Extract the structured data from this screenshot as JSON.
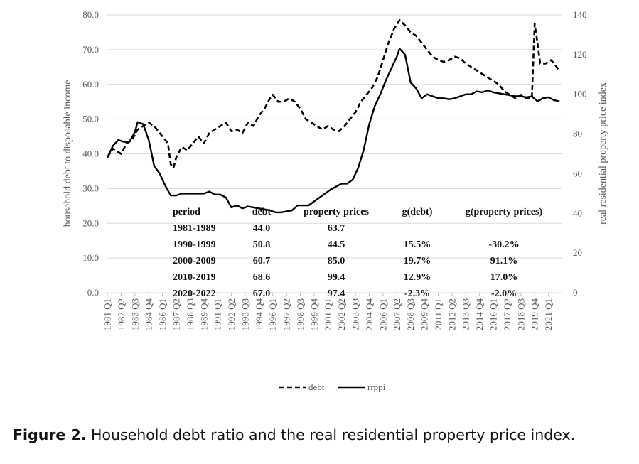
{
  "chart_data": {
    "type": "line",
    "y_left_label": "household debt to disposable income",
    "y_right_label": "real residential property price index",
    "y_left_ticks": [
      "0.0",
      "10.0",
      "20.0",
      "30.0",
      "40.0",
      "50.0",
      "60.0",
      "70.0",
      "80.0"
    ],
    "y_right_ticks": [
      "0",
      "20",
      "40",
      "60",
      "80",
      "100",
      "120",
      "140"
    ],
    "ylim_left": [
      0,
      80
    ],
    "ylim_right": [
      0,
      140
    ],
    "x_tick_labels": [
      "1981 Q1",
      "1982 Q2",
      "1983 Q3",
      "1984 Q4",
      "1986 Q1",
      "1987 Q2",
      "1988 Q3",
      "1989 Q4",
      "1991 Q1",
      "1992 Q2",
      "1993 Q3",
      "1994 Q4",
      "1996 Q1",
      "1997 Q2",
      "1998 Q3",
      "1999 Q4",
      "2001 Q1",
      "2002 Q2",
      "2003 Q3",
      "2004 Q4",
      "2006 Q1",
      "2007 Q2",
      "2008 Q3",
      "2009 Q4",
      "2011 Q1",
      "2012 Q2",
      "2013 Q3",
      "2014 Q4",
      "2016 Q1",
      "2017 Q2",
      "2018 Q3",
      "2019 Q4",
      "2021 Q1"
    ],
    "grid": true,
    "legend_position": "bottom",
    "series": [
      {
        "name": "debt",
        "axis": "left",
        "style": "dashed",
        "points": [
          [
            "1981 Q1",
            39
          ],
          [
            "1981 Q3",
            41.5
          ],
          [
            "1982 Q2",
            40
          ],
          [
            "1982 Q4",
            43
          ],
          [
            "1983 Q2",
            44
          ],
          [
            "1983 Q4",
            47
          ],
          [
            "1984 Q2",
            48
          ],
          [
            "1984 Q4",
            49
          ],
          [
            "1985 Q2",
            48
          ],
          [
            "1985 Q4",
            46
          ],
          [
            "1986 Q2",
            44
          ],
          [
            "1986 Q3",
            43
          ],
          [
            "1986 Q4",
            37
          ],
          [
            "1987 Q1",
            36
          ],
          [
            "1987 Q2",
            39
          ],
          [
            "1987 Q4",
            42
          ],
          [
            "1988 Q2",
            41
          ],
          [
            "1988 Q4",
            43
          ],
          [
            "1989 Q2",
            45
          ],
          [
            "1989 Q4",
            43
          ],
          [
            "1990 Q2",
            46
          ],
          [
            "1990 Q4",
            47
          ],
          [
            "1991 Q2",
            48
          ],
          [
            "1991 Q4",
            49
          ],
          [
            "1992 Q2",
            46.5
          ],
          [
            "1992 Q4",
            47
          ],
          [
            "1993 Q2",
            46
          ],
          [
            "1993 Q4",
            49
          ],
          [
            "1994 Q2",
            48
          ],
          [
            "1994 Q4",
            51
          ],
          [
            "1995 Q2",
            53
          ],
          [
            "1995 Q4",
            56
          ],
          [
            "1996 Q1",
            57
          ],
          [
            "1996 Q3",
            55
          ],
          [
            "1997 Q1",
            55
          ],
          [
            "1997 Q3",
            56
          ],
          [
            "1998 Q1",
            55
          ],
          [
            "1998 Q3",
            53
          ],
          [
            "1999 Q1",
            50
          ],
          [
            "1999 Q3",
            49
          ],
          [
            "2000 Q1",
            48
          ],
          [
            "2000 Q3",
            47
          ],
          [
            "2001 Q1",
            48
          ],
          [
            "2001 Q3",
            47
          ],
          [
            "2002 Q1",
            46.5
          ],
          [
            "2002 Q3",
            48
          ],
          [
            "2003 Q1",
            50
          ],
          [
            "2003 Q3",
            52
          ],
          [
            "2004 Q1",
            55
          ],
          [
            "2004 Q3",
            57
          ],
          [
            "2005 Q1",
            59
          ],
          [
            "2005 Q3",
            62
          ],
          [
            "2006 Q1",
            67
          ],
          [
            "2006 Q3",
            72
          ],
          [
            "2007 Q1",
            76
          ],
          [
            "2007 Q3",
            78.5
          ],
          [
            "2008 Q1",
            77
          ],
          [
            "2008 Q3",
            75
          ],
          [
            "2009 Q1",
            74
          ],
          [
            "2009 Q3",
            72
          ],
          [
            "2010 Q1",
            70
          ],
          [
            "2010 Q3",
            68
          ],
          [
            "2011 Q1",
            67
          ],
          [
            "2011 Q3",
            66.5
          ],
          [
            "2012 Q1",
            67
          ],
          [
            "2012 Q3",
            68
          ],
          [
            "2013 Q1",
            67.5
          ],
          [
            "2013 Q3",
            66
          ],
          [
            "2014 Q1",
            65
          ],
          [
            "2014 Q3",
            64
          ],
          [
            "2015 Q1",
            63
          ],
          [
            "2015 Q3",
            62
          ],
          [
            "2016 Q1",
            61
          ],
          [
            "2016 Q3",
            60
          ],
          [
            "2017 Q1",
            58
          ],
          [
            "2017 Q3",
            57
          ],
          [
            "2018 Q1",
            56
          ],
          [
            "2018 Q3",
            57
          ],
          [
            "2019 Q1",
            56
          ],
          [
            "2019 Q3",
            56
          ],
          [
            "2019 Q4",
            77.5
          ],
          [
            "2020 Q1",
            72
          ],
          [
            "2020 Q2",
            66
          ],
          [
            "2020 Q4",
            66
          ],
          [
            "2021 Q2",
            67
          ],
          [
            "2022 Q1",
            64
          ]
        ]
      },
      {
        "name": "rrppi",
        "axis": "right",
        "style": "solid",
        "points": [
          [
            "1981 Q1",
            68
          ],
          [
            "1981 Q3",
            74
          ],
          [
            "1982 Q1",
            77
          ],
          [
            "1982 Q3",
            76
          ],
          [
            "1983 Q1",
            76
          ],
          [
            "1983 Q3",
            81
          ],
          [
            "1983 Q4",
            86
          ],
          [
            "1984 Q2",
            85
          ],
          [
            "1984 Q4",
            77
          ],
          [
            "1985 Q2",
            64
          ],
          [
            "1985 Q4",
            60
          ],
          [
            "1986 Q2",
            54
          ],
          [
            "1986 Q4",
            49
          ],
          [
            "1987 Q2",
            49
          ],
          [
            "1987 Q4",
            50
          ],
          [
            "1988 Q2",
            50
          ],
          [
            "1988 Q4",
            50
          ],
          [
            "1989 Q2",
            50
          ],
          [
            "1989 Q4",
            50
          ],
          [
            "1990 Q2",
            51
          ],
          [
            "1990 Q4",
            49.5
          ],
          [
            "1991 Q2",
            49.5
          ],
          [
            "1991 Q4",
            48
          ],
          [
            "1992 Q2",
            43
          ],
          [
            "1992 Q4",
            44
          ],
          [
            "1993 Q2",
            42.5
          ],
          [
            "1993 Q4",
            43.5
          ],
          [
            "1994 Q2",
            43
          ],
          [
            "1994 Q4",
            42.5
          ],
          [
            "1995 Q2",
            42
          ],
          [
            "1995 Q4",
            41.5
          ],
          [
            "1996 Q2",
            40.5
          ],
          [
            "1996 Q4",
            40.5
          ],
          [
            "1997 Q2",
            41
          ],
          [
            "1997 Q4",
            41.5
          ],
          [
            "1998 Q2",
            44
          ],
          [
            "1998 Q4",
            44
          ],
          [
            "1999 Q2",
            44
          ],
          [
            "1999 Q4",
            46
          ],
          [
            "2000 Q2",
            48
          ],
          [
            "2000 Q4",
            50
          ],
          [
            "2001 Q2",
            52
          ],
          [
            "2001 Q4",
            53.5
          ],
          [
            "2002 Q2",
            55
          ],
          [
            "2002 Q4",
            55
          ],
          [
            "2003 Q2",
            57
          ],
          [
            "2003 Q4",
            63
          ],
          [
            "2004 Q2",
            72
          ],
          [
            "2004 Q4",
            85
          ],
          [
            "2005 Q2",
            94
          ],
          [
            "2005 Q4",
            100
          ],
          [
            "2006 Q2",
            107
          ],
          [
            "2006 Q4",
            113
          ],
          [
            "2007 Q2",
            119
          ],
          [
            "2007 Q3",
            123
          ],
          [
            "2008 Q1",
            120
          ],
          [
            "2008 Q3",
            106
          ],
          [
            "2009 Q1",
            103
          ],
          [
            "2009 Q3",
            98
          ],
          [
            "2010 Q1",
            100
          ],
          [
            "2010 Q3",
            99
          ],
          [
            "2011 Q1",
            98
          ],
          [
            "2011 Q3",
            98
          ],
          [
            "2012 Q1",
            97.5
          ],
          [
            "2012 Q3",
            98
          ],
          [
            "2013 Q1",
            99
          ],
          [
            "2013 Q3",
            100
          ],
          [
            "2014 Q1",
            100
          ],
          [
            "2014 Q3",
            101.5
          ],
          [
            "2015 Q1",
            101
          ],
          [
            "2015 Q3",
            102
          ],
          [
            "2016 Q1",
            101
          ],
          [
            "2016 Q3",
            100.5
          ],
          [
            "2017 Q1",
            100
          ],
          [
            "2017 Q3",
            99.5
          ],
          [
            "2018 Q1",
            99
          ],
          [
            "2018 Q3",
            99
          ],
          [
            "2019 Q1",
            98.5
          ],
          [
            "2019 Q3",
            99
          ],
          [
            "2020 Q1",
            96.5
          ],
          [
            "2020 Q3",
            98
          ],
          [
            "2021 Q1",
            98.5
          ],
          [
            "2021 Q3",
            97
          ],
          [
            "2022 Q1",
            96.5
          ]
        ]
      }
    ],
    "table": {
      "headers": [
        "period",
        "debt",
        "property prices",
        "g(debt)",
        "g(property prices)"
      ],
      "rows": [
        [
          "1981-1989",
          "44.0",
          "63.7",
          "",
          ""
        ],
        [
          "1990-1999",
          "50.8",
          "44.5",
          "15.5%",
          "-30.2%"
        ],
        [
          "2000-2009",
          "60.7",
          "85.0",
          "19.7%",
          "91.1%"
        ],
        [
          "2010-2019",
          "68.6",
          "99.4",
          "12.9%",
          "17.0%"
        ],
        [
          "2020-2022",
          "67.0",
          "97.4",
          "-2.3%",
          "-2.0%"
        ]
      ]
    },
    "legend": [
      {
        "label": "debt",
        "style": "dashed"
      },
      {
        "label": "rrppi",
        "style": "solid"
      }
    ],
    "line_color": "#000000",
    "grid_color": "#d9d9d9"
  },
  "caption": {
    "label": "Figure 2.",
    "text": " Household debt ratio and the real residential property price index."
  }
}
